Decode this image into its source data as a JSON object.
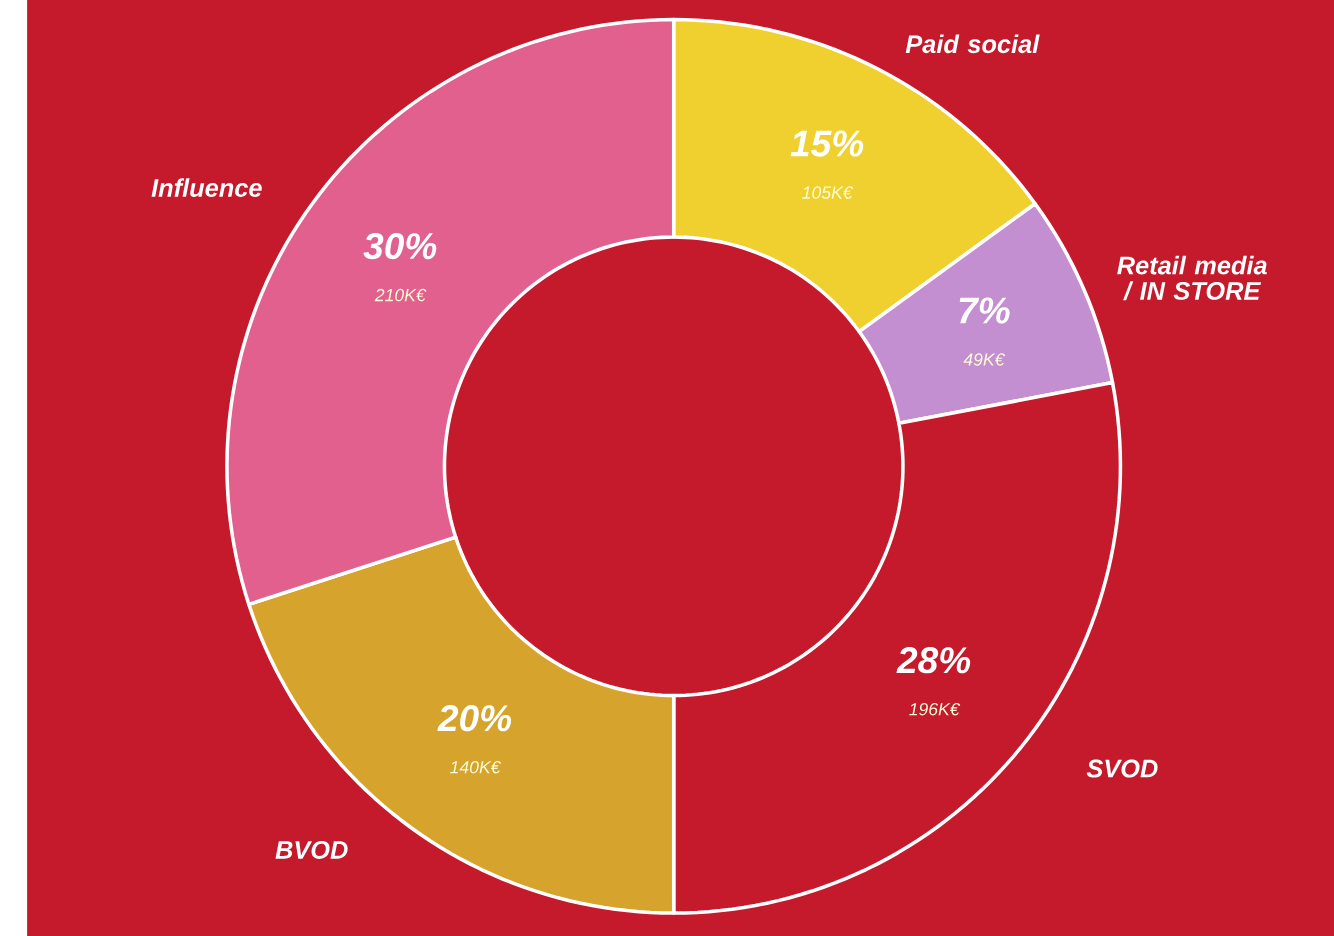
{
  "chart_data": {
    "type": "donut",
    "categories": [
      "Paid social",
      "Retail media / IN STORE",
      "SVOD",
      "BVOD",
      "Influence"
    ],
    "values": [
      15,
      7,
      28,
      20,
      30
    ],
    "value_labels": [
      "15%",
      "7%",
      "28%",
      "20%",
      "30%"
    ],
    "colors": [
      "#f0d02e",
      "#c48fd0",
      "#c41a2b",
      "#d6a42c",
      "#e2608e"
    ],
    "annotations": [
      "105K€",
      "49K€",
      "196K€",
      "140K€",
      "210K€"
    ]
  }
}
